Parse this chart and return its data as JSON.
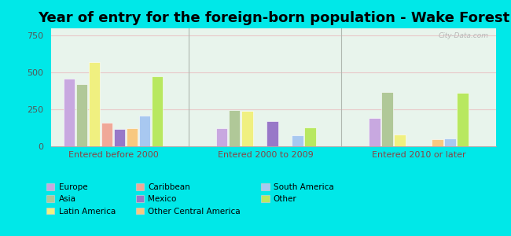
{
  "title": "Year of entry for the foreign-born population - Wake Forest",
  "categories": [
    "Entered before 2000",
    "Entered 2000 to 2009",
    "Entered 2010 or later"
  ],
  "bar_order": [
    "Europe",
    "Asia",
    "Latin America",
    "Caribbean",
    "Mexico",
    "Other Central America",
    "South America",
    "Other"
  ],
  "series": {
    "Europe": [
      460,
      125,
      190
    ],
    "Asia": [
      420,
      245,
      370
    ],
    "Latin America": [
      570,
      240,
      80
    ],
    "Caribbean": [
      160,
      0,
      0
    ],
    "Mexico": [
      120,
      170,
      0
    ],
    "Other Central America": [
      125,
      0,
      50
    ],
    "South America": [
      210,
      75,
      55
    ],
    "Other": [
      475,
      130,
      365
    ]
  },
  "colors": {
    "Europe": "#c8a8e0",
    "Asia": "#b0c898",
    "Latin America": "#f0f080",
    "Caribbean": "#f0a898",
    "Mexico": "#9878c8",
    "Other Central America": "#f8c880",
    "South America": "#a8c8f0",
    "Other": "#b8e860"
  },
  "legend_cols": [
    [
      "Europe",
      "Caribbean",
      "South America"
    ],
    [
      "Asia",
      "Mexico",
      "Other"
    ],
    [
      "Latin America",
      "Other Central America"
    ]
  ],
  "ylim": [
    0,
    800
  ],
  "yticks": [
    0,
    250,
    500,
    750
  ],
  "fig_bg": "#00e8e8",
  "plot_bg": "#e8f4ec",
  "title_fontsize": 13,
  "watermark": "City-Data.com"
}
